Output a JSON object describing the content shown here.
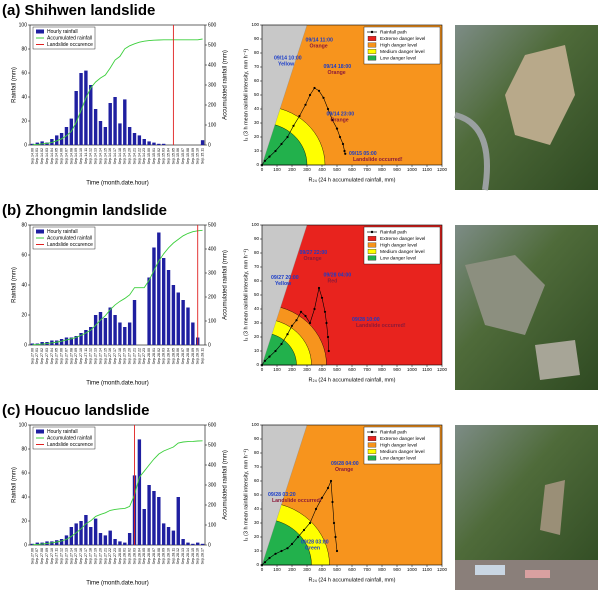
{
  "panels": [
    "(a) Shihwen landslide",
    "(b) Zhongmin landslide",
    "(c) Houcuo landslide"
  ],
  "chart_data": [
    {
      "type": "bar",
      "ylabel": "Rainfall (mm)",
      "y2label": "Accumulated rainfall (mm)",
      "xlabel": "Time (month.date.hour)",
      "categories": [
        "Sep.14.00",
        "Sep.14.01",
        "Sep.14.02",
        "Sep.14.03",
        "Sep.14.04",
        "Sep.14.05",
        "Sep.14.06",
        "Sep.14.07",
        "Sep.14.08",
        "Sep.14.09",
        "Sep.14.10",
        "Sep.14.11",
        "Sep.14.12",
        "Sep.14.13",
        "Sep.14.14",
        "Sep.14.15",
        "Sep.14.16",
        "Sep.14.17",
        "Sep.14.18",
        "Sep.14.19",
        "Sep.14.20",
        "Sep.14.21",
        "Sep.14.22",
        "Sep.14.23",
        "Sep.15.00",
        "Sep.15.01",
        "Sep.15.02",
        "Sep.15.03",
        "Sep.15.04",
        "Sep.15.05",
        "Sep.15.06",
        "Sep.15.07",
        "Sep.15.08",
        "Sep.15.09",
        "Sep.15.10",
        "Sep.15.11"
      ],
      "series": [
        {
          "name": "Hourly rainfall",
          "color": "#1f1fa0",
          "values": [
            1,
            2,
            3,
            2,
            5,
            8,
            10,
            15,
            22,
            45,
            60,
            62,
            50,
            30,
            20,
            15,
            35,
            40,
            18,
            38,
            15,
            10,
            8,
            5,
            3,
            2,
            1,
            1,
            0,
            0,
            0,
            0,
            0,
            0,
            0,
            4
          ]
        },
        {
          "name": "Accumulated rainfall",
          "color": "#3ccf3c",
          "axis": "y2",
          "values": [
            1,
            3,
            6,
            8,
            13,
            21,
            31,
            46,
            68,
            113,
            173,
            235,
            285,
            315,
            335,
            350,
            385,
            425,
            443,
            481,
            496,
            506,
            514,
            519,
            522,
            524,
            525,
            526,
            526,
            526,
            526,
            526,
            526,
            526,
            526,
            530
          ]
        }
      ],
      "landslide": {
        "name": "Landslide occurence",
        "color": "#e02020",
        "category": "Sep.15.05"
      },
      "ylim": [
        0,
        100
      ],
      "yticks": [
        0,
        20,
        40,
        60,
        80,
        100
      ],
      "y2lim": [
        0,
        600
      ],
      "y2ticks": [
        0,
        100,
        200,
        300,
        400,
        500,
        600
      ]
    },
    {
      "type": "danger",
      "xlabel": "R₂₄ (24 h accumulated rainfall, mm)",
      "ylabel": "I₃ (3 h mean rainfall intensity, mm h⁻¹)",
      "xlim": [
        0,
        1200
      ],
      "xticks": [
        0,
        100,
        200,
        300,
        400,
        500,
        600,
        700,
        800,
        900,
        1000,
        1100,
        1200
      ],
      "ylim": [
        0,
        100
      ],
      "yticks": [
        0,
        10,
        20,
        30,
        40,
        50,
        60,
        70,
        80,
        90,
        100
      ],
      "series": [
        {
          "name": "Rainfall path",
          "color": "#000000",
          "x": [
            0,
            20,
            50,
            90,
            130,
            170,
            210,
            250,
            290,
            320,
            350,
            380,
            410,
            440,
            470,
            500,
            520,
            540,
            550,
            555
          ],
          "y": [
            0,
            3,
            6,
            10,
            15,
            20,
            28,
            35,
            43,
            50,
            55,
            53,
            48,
            40,
            32,
            26,
            20,
            15,
            10,
            8
          ]
        }
      ],
      "zones": [
        {
          "name": "Extreme danger level",
          "color": "#e8231e",
          "r": null
        },
        {
          "name": "High danger level",
          "color": "#f7941d",
          "r": null
        },
        {
          "name": "Medium danger level",
          "color": "#ffff00",
          "r": [
            420,
            42
          ]
        },
        {
          "name": "Low danger level",
          "color": "#22b14c",
          "r": [
            300,
            30
          ]
        }
      ],
      "annotations": [
        {
          "time": "09/14  10:00",
          "level": "Yellow",
          "color": "#1a3cc8"
        },
        {
          "time": "09/14  11:00",
          "level": "Orange",
          "color": "#8b1a3a"
        },
        {
          "time": "09/14  18:00",
          "level": "Orange",
          "color": "#8b1a3a"
        },
        {
          "time": "09/14  23:00",
          "level": "Orange",
          "color": "#8b1a3a"
        },
        {
          "time": "09/15  05:00",
          "level": "Landslide occurred!",
          "color": "#8b1a3a"
        }
      ]
    },
    {
      "type": "bar",
      "ylabel": "Rainfall (mm)",
      "y2label": "Accumulated rainfall (mm)",
      "xlabel": "Time (month.date.hour)",
      "categories": [
        "Sep.27.00",
        "Sep.27.01",
        "Sep.27.02",
        "Sep.27.03",
        "Sep.27.04",
        "Sep.27.05",
        "Sep.27.06",
        "Sep.27.07",
        "Sep.27.08",
        "Sep.27.09",
        "Sep.27.10",
        "Sep.27.11",
        "Sep.27.12",
        "Sep.27.13",
        "Sep.27.14",
        "Sep.27.15",
        "Sep.27.16",
        "Sep.27.17",
        "Sep.27.18",
        "Sep.27.19",
        "Sep.27.20",
        "Sep.27.21",
        "Sep.27.22",
        "Sep.27.23",
        "Sep.28.00",
        "Sep.28.01",
        "Sep.28.02",
        "Sep.28.03",
        "Sep.28.04",
        "Sep.28.05",
        "Sep.28.06",
        "Sep.28.07",
        "Sep.28.08",
        "Sep.28.09",
        "Sep.28.10",
        "Sep.28.11"
      ],
      "series": [
        {
          "name": "Hourly rainfall",
          "color": "#1f1fa0",
          "values": [
            1,
            1,
            2,
            2,
            3,
            3,
            4,
            5,
            5,
            6,
            8,
            10,
            12,
            20,
            22,
            18,
            25,
            20,
            15,
            12,
            15,
            30,
            0,
            0,
            45,
            65,
            75,
            58,
            50,
            40,
            35,
            30,
            25,
            15,
            5,
            0
          ]
        },
        {
          "name": "Accumulated rainfall",
          "color": "#3ccf3c",
          "axis": "y2",
          "values": [
            1,
            2,
            4,
            6,
            9,
            12,
            16,
            21,
            26,
            32,
            40,
            50,
            62,
            82,
            104,
            122,
            147,
            167,
            182,
            194,
            209,
            239,
            239,
            239,
            270,
            310,
            350,
            380,
            405,
            425,
            440,
            455,
            465,
            472,
            476,
            478
          ]
        }
      ],
      "landslide": {
        "name": "Landslide occurence",
        "color": "#e02020",
        "category": "Sep.28.10"
      },
      "ylim": [
        0,
        80
      ],
      "yticks": [
        0,
        20,
        40,
        60,
        80
      ],
      "y2lim": [
        0,
        500
      ],
      "y2ticks": [
        0,
        100,
        200,
        300,
        400,
        500
      ]
    },
    {
      "type": "danger",
      "xlabel": "R₂₄ (24 h accumulated rainfall, mm)",
      "ylabel": "I₃ (3 h mean rainfall intensity, mm h⁻¹)",
      "xlim": [
        0,
        1200
      ],
      "xticks": [
        0,
        100,
        200,
        300,
        400,
        500,
        600,
        700,
        800,
        900,
        1000,
        1100,
        1200
      ],
      "ylim": [
        0,
        100
      ],
      "yticks": [
        0,
        10,
        20,
        30,
        40,
        50,
        60,
        70,
        80,
        90,
        100
      ],
      "series": [
        {
          "name": "Rainfall path",
          "color": "#000000",
          "x": [
            0,
            20,
            50,
            90,
            130,
            170,
            200,
            230,
            260,
            290,
            320,
            350,
            380,
            400,
            420,
            430,
            440,
            445
          ],
          "y": [
            0,
            3,
            6,
            10,
            15,
            22,
            28,
            32,
            38,
            35,
            30,
            40,
            55,
            48,
            38,
            30,
            20,
            10
          ]
        }
      ],
      "zones": [
        {
          "name": "Extreme danger level",
          "color": "#e8231e",
          "r": null
        },
        {
          "name": "High danger level",
          "color": "#f7941d",
          "r": [
            430,
            43
          ]
        },
        {
          "name": "Medium danger level",
          "color": "#ffff00",
          "r": [
            330,
            33
          ]
        },
        {
          "name": "Low danger level",
          "color": "#22b14c",
          "r": [
            230,
            23
          ]
        }
      ],
      "annotations": [
        {
          "time": "09/27  20:00",
          "level": "Yellow",
          "color": "#1a3cc8"
        },
        {
          "time": "09/27  22:00",
          "level": "Orange",
          "color": "#8b1a3a"
        },
        {
          "time": "09/28  04:00",
          "level": "Red",
          "color": "#8b1a3a"
        },
        {
          "time": "09/28  10:00",
          "level": "Landslide occurred!",
          "color": "#8b1a3a"
        }
      ]
    },
    {
      "type": "bar",
      "ylabel": "Rainfall (mm)",
      "y2label": "Accumulated rainfall (mm)",
      "xlabel": "Time (month.date.hour)",
      "categories": [
        "Sep.27.06",
        "Sep.27.07",
        "Sep.27.08",
        "Sep.27.09",
        "Sep.27.10",
        "Sep.27.11",
        "Sep.27.12",
        "Sep.27.13",
        "Sep.27.14",
        "Sep.27.15",
        "Sep.27.16",
        "Sep.27.17",
        "Sep.27.18",
        "Sep.27.19",
        "Sep.27.20",
        "Sep.27.21",
        "Sep.27.22",
        "Sep.27.23",
        "Sep.28.00",
        "Sep.28.01",
        "Sep.28.02",
        "Sep.28.03",
        "Sep.28.04",
        "Sep.28.05",
        "Sep.28.06",
        "Sep.28.07",
        "Sep.28.08",
        "Sep.28.09",
        "Sep.28.10",
        "Sep.28.11",
        "Sep.28.12",
        "Sep.28.13",
        "Sep.28.14",
        "Sep.28.15",
        "Sep.28.16",
        "Sep.28.17"
      ],
      "series": [
        {
          "name": "Hourly rainfall",
          "color": "#1f1fa0",
          "values": [
            1,
            2,
            2,
            3,
            3,
            4,
            5,
            8,
            15,
            18,
            20,
            25,
            15,
            22,
            10,
            8,
            12,
            5,
            3,
            2,
            10,
            58,
            88,
            30,
            50,
            45,
            40,
            18,
            15,
            12,
            40,
            5,
            2,
            1,
            2,
            1
          ]
        },
        {
          "name": "Accumulated rainfall",
          "color": "#3ccf3c",
          "axis": "y2",
          "values": [
            1,
            3,
            5,
            8,
            11,
            15,
            20,
            28,
            43,
            61,
            81,
            106,
            121,
            143,
            153,
            161,
            173,
            178,
            181,
            183,
            193,
            251,
            339,
            369,
            400,
            430,
            455,
            470,
            480,
            490,
            510,
            515,
            517,
            518,
            520,
            521
          ]
        }
      ],
      "landslide": {
        "name": "Landslide occurence",
        "color": "#e02020",
        "category": "Sep.28.03"
      },
      "ylim": [
        0,
        100
      ],
      "yticks": [
        0,
        20,
        40,
        60,
        80,
        100
      ],
      "y2lim": [
        0,
        600
      ],
      "y2ticks": [
        0,
        100,
        200,
        300,
        400,
        500,
        600
      ]
    },
    {
      "type": "danger",
      "xlabel": "R₂₄ (24 h accumulated rainfall, mm)",
      "ylabel": "I₃ (3 h mean rainfall intensity, mm h⁻¹)",
      "xlim": [
        0,
        1200
      ],
      "xticks": [
        0,
        100,
        200,
        300,
        400,
        500,
        600,
        700,
        800,
        900,
        1000,
        1100,
        1200
      ],
      "ylim": [
        0,
        100
      ],
      "yticks": [
        0,
        10,
        20,
        30,
        40,
        50,
        60,
        70,
        80,
        90,
        100
      ],
      "series": [
        {
          "name": "Rainfall path",
          "color": "#000000",
          "x": [
            0,
            20,
            50,
            90,
            130,
            170,
            200,
            240,
            280,
            320,
            360,
            400,
            440,
            460,
            470,
            480,
            490,
            500
          ],
          "y": [
            0,
            2,
            5,
            8,
            10,
            12,
            15,
            20,
            25,
            30,
            40,
            48,
            55,
            60,
            45,
            30,
            20,
            10
          ]
        }
      ],
      "zones": [
        {
          "name": "Extreme danger level",
          "color": "#e8231e",
          "r": null
        },
        {
          "name": "High danger level",
          "color": "#f7941d",
          "r": null
        },
        {
          "name": "Medium danger level",
          "color": "#ffff00",
          "r": [
            450,
            45
          ]
        },
        {
          "name": "Low danger level",
          "color": "#22b14c",
          "r": [
            330,
            33
          ]
        }
      ],
      "annotations": [
        {
          "time": "09/28  04:00",
          "level": "Orange",
          "color": "#8b1a3a"
        },
        {
          "time": "09/28  03:20",
          "level": "Landslide occurred!",
          "color": "#8b1a3a"
        },
        {
          "time": "09/28  03:00",
          "level": "Green",
          "color": "#1a3cc8"
        }
      ]
    }
  ]
}
